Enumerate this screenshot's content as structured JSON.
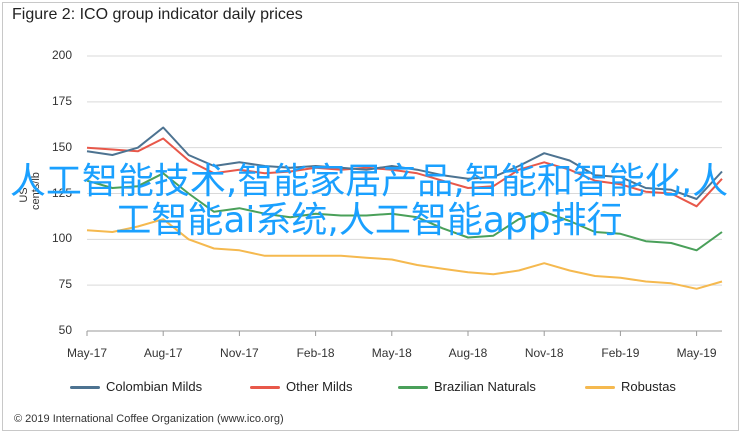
{
  "figure": {
    "title": "Figure 2: ICO group indicator daily prices",
    "copyright": "© 2019 International Coffee Organization (www.ico.org)",
    "overlay_text": "人工智能技术,智能家居产品,智能和智能化,人工智能ai系统,人工智能app排行"
  },
  "chart_data": {
    "type": "line",
    "title": "Figure 2: ICO group indicator daily prices",
    "xlabel": "",
    "ylabel": "US cents/lb",
    "ylim": [
      50,
      200
    ],
    "yticks": [
      50,
      75,
      100,
      125,
      150,
      175,
      200
    ],
    "xticks": [
      "May-17",
      "Aug-17",
      "Nov-17",
      "Feb-18",
      "May-18",
      "Aug-18",
      "Nov-18",
      "Feb-19",
      "May-19"
    ],
    "grid": "horizontal",
    "legend_position": "bottom",
    "x": [
      "May-17",
      "Jun-17",
      "Jul-17",
      "Aug-17",
      "Sep-17",
      "Oct-17",
      "Nov-17",
      "Dec-17",
      "Jan-18",
      "Feb-18",
      "Mar-18",
      "Apr-18",
      "May-18",
      "Jun-18",
      "Jul-18",
      "Aug-18",
      "Sep-18",
      "Oct-18",
      "Nov-18",
      "Dec-18",
      "Jan-19",
      "Feb-19",
      "Mar-19",
      "Apr-19",
      "May-19",
      "Jun-19"
    ],
    "series": [
      {
        "name": "Colombian Milds",
        "color": "#4d7391",
        "values": [
          148,
          146,
          150,
          161,
          146,
          140,
          142,
          140,
          139,
          140,
          139,
          138,
          140,
          138,
          135,
          133,
          134,
          140,
          147,
          143,
          135,
          134,
          128,
          127,
          122,
          137
        ]
      },
      {
        "name": "Other Milds",
        "color": "#e8584a",
        "values": [
          150,
          149,
          148,
          155,
          143,
          136,
          138,
          136,
          137,
          139,
          138,
          139,
          138,
          136,
          132,
          128,
          129,
          138,
          142,
          138,
          132,
          130,
          126,
          125,
          118,
          133
        ]
      },
      {
        "name": "Brazilian Naturals",
        "color": "#4aa05a",
        "values": [
          132,
          128,
          129,
          136,
          125,
          115,
          117,
          114,
          112,
          114,
          113,
          113,
          114,
          112,
          106,
          101,
          102,
          111,
          115,
          110,
          104,
          103,
          99,
          98,
          94,
          104
        ]
      },
      {
        "name": "Robustas",
        "color": "#f5b94f",
        "values": [
          105,
          104,
          107,
          111,
          100,
          95,
          94,
          91,
          91,
          91,
          91,
          90,
          89,
          86,
          84,
          82,
          81,
          83,
          87,
          83,
          80,
          79,
          77,
          76,
          73,
          77
        ]
      }
    ]
  },
  "legend": [
    {
      "label": "Colombian Milds",
      "color": "#4d7391"
    },
    {
      "label": "Other Milds",
      "color": "#e8584a"
    },
    {
      "label": "Brazilian Naturals",
      "color": "#4aa05a"
    },
    {
      "label": "Robustas",
      "color": "#f5b94f"
    }
  ]
}
